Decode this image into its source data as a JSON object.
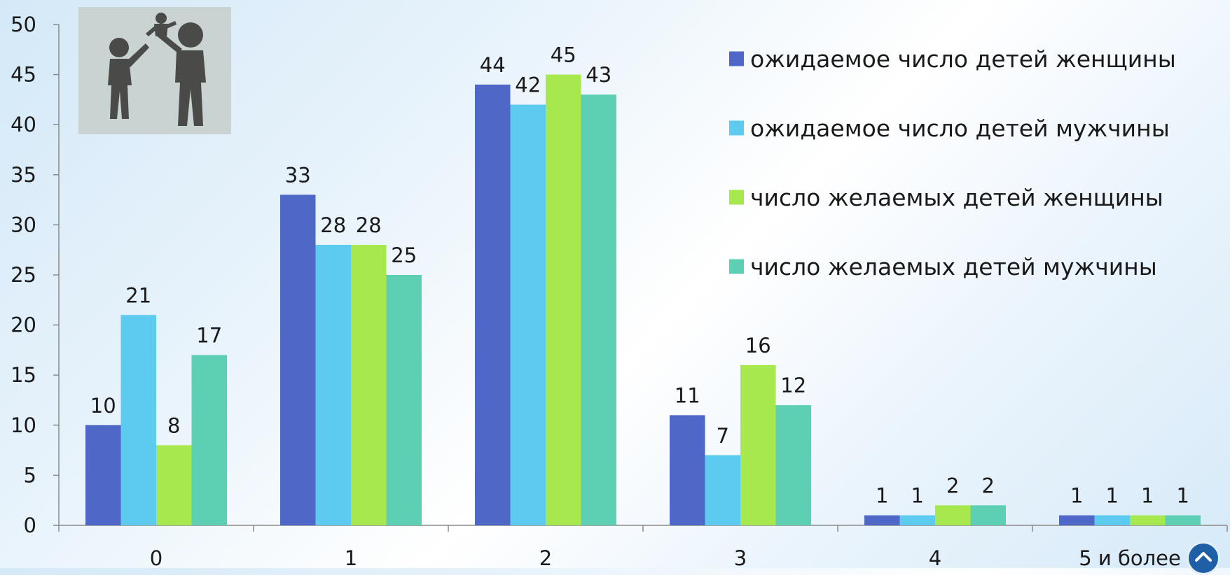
{
  "chart_data": {
    "type": "bar",
    "title": "",
    "xlabel": "",
    "ylabel": "",
    "ylim": [
      0,
      50
    ],
    "yticks": [
      0,
      5,
      10,
      15,
      20,
      25,
      30,
      35,
      40,
      45,
      50
    ],
    "categories": [
      "0",
      "1",
      "2",
      "3",
      "4",
      "5 и более"
    ],
    "series": [
      {
        "name": "ожидаемое число детей женщины",
        "color": "#4f67c7",
        "values": [
          10,
          33,
          44,
          11,
          1,
          1
        ]
      },
      {
        "name": "ожидаемое число детей мужчины",
        "color": "#5dcbf0",
        "values": [
          21,
          28,
          42,
          7,
          1,
          1
        ]
      },
      {
        "name": "число желаемых детей женщины",
        "color": "#a8e84f",
        "values": [
          8,
          28,
          45,
          16,
          2,
          1
        ]
      },
      {
        "name": "число желаемых детей мужчины",
        "color": "#5dcfb3",
        "values": [
          17,
          25,
          43,
          12,
          2,
          1
        ]
      }
    ],
    "legend_position": "top-right",
    "grid": false
  },
  "icons": {
    "photo": "family-child-icon",
    "nav": "chevron-up-icon"
  }
}
